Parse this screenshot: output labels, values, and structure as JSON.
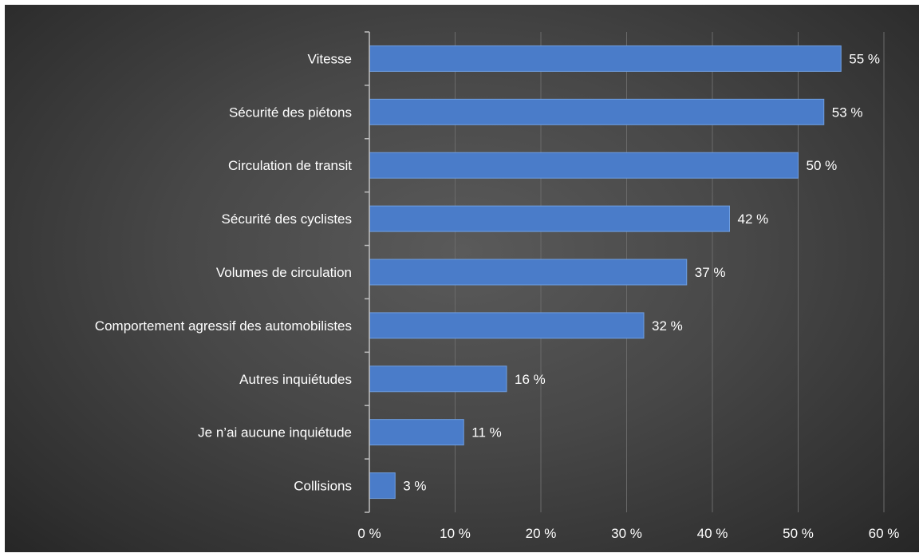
{
  "chart_data": {
    "type": "bar",
    "orientation": "horizontal",
    "categories": [
      "Vitesse",
      "Sécurité des piétons",
      "Circulation de transit",
      "Sécurité des cyclistes",
      "Volumes de circulation",
      "Comportement agressif des automobilistes",
      "Autres inquiétudes",
      "Je n’ai aucune inquiétude",
      "Collisions"
    ],
    "values": [
      55,
      53,
      50,
      42,
      37,
      32,
      16,
      11,
      3
    ],
    "value_labels": [
      "55 %",
      "53 %",
      "50 %",
      "42 %",
      "37 %",
      "32 %",
      "16 %",
      "11 %",
      "3 %"
    ],
    "xlim": [
      0,
      60
    ],
    "xticks": [
      0,
      10,
      20,
      30,
      40,
      50,
      60
    ],
    "xtick_labels": [
      "0 %",
      "10 %",
      "20 %",
      "30 %",
      "40 %",
      "50 %",
      "60 %"
    ],
    "grid": "vertical",
    "colors": {
      "bar": "#4a7cc9",
      "bar_edge": "#6f9ee0",
      "grid": "#6a6a6a",
      "axis": "#bfbfbf",
      "text": "#ffffff"
    }
  }
}
